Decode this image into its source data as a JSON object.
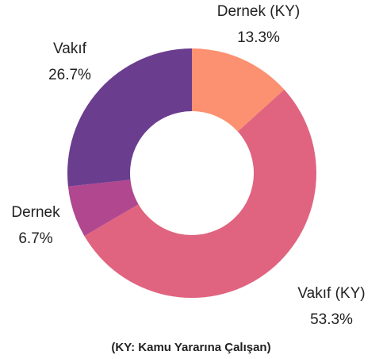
{
  "chart_data": {
    "type": "donut",
    "categories": [
      "Dernek (KY)",
      "Vakıf (KY)",
      "Dernek",
      "Vakıf"
    ],
    "values": [
      13.3,
      53.3,
      6.7,
      26.7
    ],
    "value_labels": [
      "13.3%",
      "53.3%",
      "6.7%",
      "26.7%"
    ],
    "colors": [
      "#fb9170",
      "#e0647f",
      "#b0478f",
      "#6b3d8f"
    ],
    "footnote": "(KY: Kamu Yararına Çalışan)"
  }
}
